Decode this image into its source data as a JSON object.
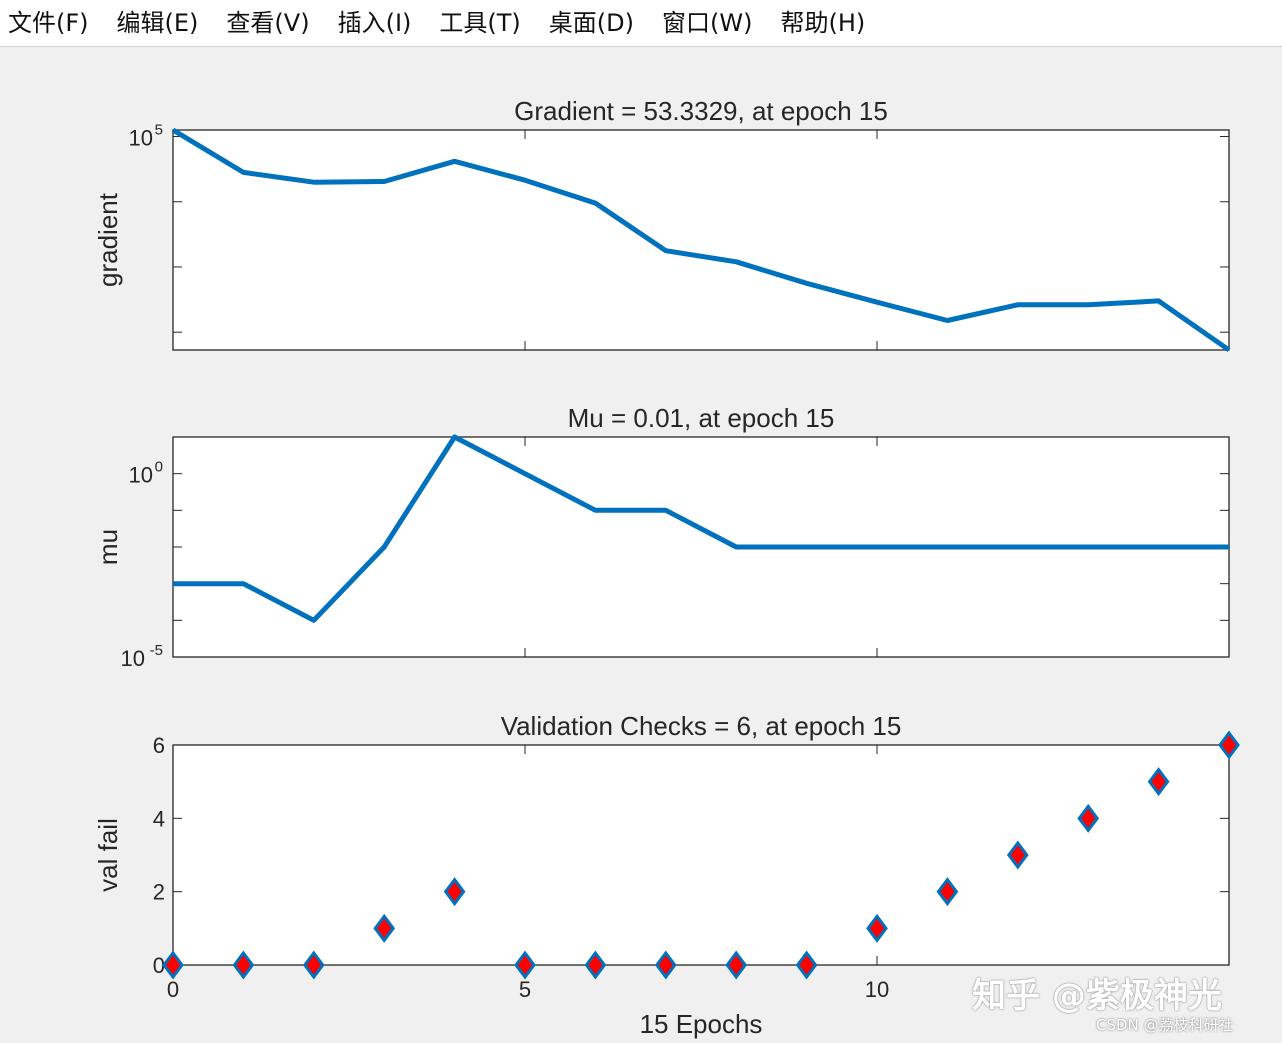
{
  "menubar": {
    "items": [
      {
        "label": "文件(F)"
      },
      {
        "label": "编辑(E)"
      },
      {
        "label": "查看(V)"
      },
      {
        "label": "插入(I)"
      },
      {
        "label": "工具(T)"
      },
      {
        "label": "桌面(D)"
      },
      {
        "label": "窗口(W)"
      },
      {
        "label": "帮助(H)"
      }
    ]
  },
  "colors": {
    "line": "#0072bd",
    "marker_fill": "#ff0000",
    "marker_edge": "#0072bd",
    "axes_bg": "#ffffff",
    "figure_bg": "#f0f0f0"
  },
  "chart_data": [
    {
      "type": "line",
      "title": "Gradient = 53.3329, at epoch 15",
      "ylabel": "gradient",
      "xlabel": "",
      "yscale": "log",
      "xlim": [
        0,
        15
      ],
      "ylim_log10": [
        1.727,
        5.1
      ],
      "ytick_labels": [
        {
          "base": "10",
          "exp": "5",
          "log10": 5
        }
      ],
      "xtick_labels": [],
      "grid": false,
      "x": [
        0,
        1,
        2,
        3,
        4,
        5,
        6,
        7,
        8,
        9,
        10,
        11,
        12,
        13,
        14,
        15
      ],
      "y_log10": [
        5.15,
        4.45,
        4.3,
        4.31,
        4.62,
        4.33,
        3.98,
        3.25,
        3.08,
        2.75,
        2.46,
        2.18,
        2.42,
        2.42,
        2.48,
        1.727
      ]
    },
    {
      "type": "line",
      "title": "Mu = 0.01, at epoch 15",
      "ylabel": "mu",
      "xlabel": "",
      "yscale": "log",
      "xlim": [
        0,
        15
      ],
      "ylim_log10": [
        -5,
        1
      ],
      "ytick_labels": [
        {
          "base": "10",
          "exp": "0",
          "log10": 0
        },
        {
          "base": "10",
          "exp": "-5",
          "log10": -5
        }
      ],
      "xtick_labels": [],
      "grid": false,
      "x": [
        0,
        1,
        2,
        3,
        4,
        5,
        6,
        7,
        8,
        9,
        10,
        11,
        12,
        13,
        14,
        15
      ],
      "y_log10": [
        -3,
        -3,
        -4,
        -2,
        1,
        0,
        -1,
        -1,
        -2,
        -2,
        -2,
        -2,
        -2,
        -2,
        -2,
        -2
      ]
    },
    {
      "type": "scatter",
      "title": "Validation Checks = 6, at epoch 15",
      "ylabel": "val fail",
      "xlabel": "15 Epochs",
      "yscale": "linear",
      "xlim": [
        0,
        15
      ],
      "ylim": [
        0,
        6
      ],
      "ytick_labels": [
        {
          "label": "0",
          "value": 0
        },
        {
          "label": "2",
          "value": 2
        },
        {
          "label": "4",
          "value": 4
        },
        {
          "label": "6",
          "value": 6
        }
      ],
      "xtick_labels": [
        {
          "label": "0",
          "value": 0
        },
        {
          "label": "5",
          "value": 5
        },
        {
          "label": "10",
          "value": 10
        }
      ],
      "grid": false,
      "marker": "diamond",
      "x": [
        0,
        1,
        2,
        3,
        4,
        5,
        6,
        7,
        8,
        9,
        10,
        11,
        12,
        13,
        14,
        15
      ],
      "y": [
        0,
        0,
        0,
        1,
        2,
        0,
        0,
        0,
        0,
        0,
        1,
        2,
        3,
        4,
        5,
        6
      ]
    }
  ],
  "watermarks": {
    "zhihu": "知乎 @紫极神光",
    "csdn": "CSDN @荔枝科研社"
  }
}
